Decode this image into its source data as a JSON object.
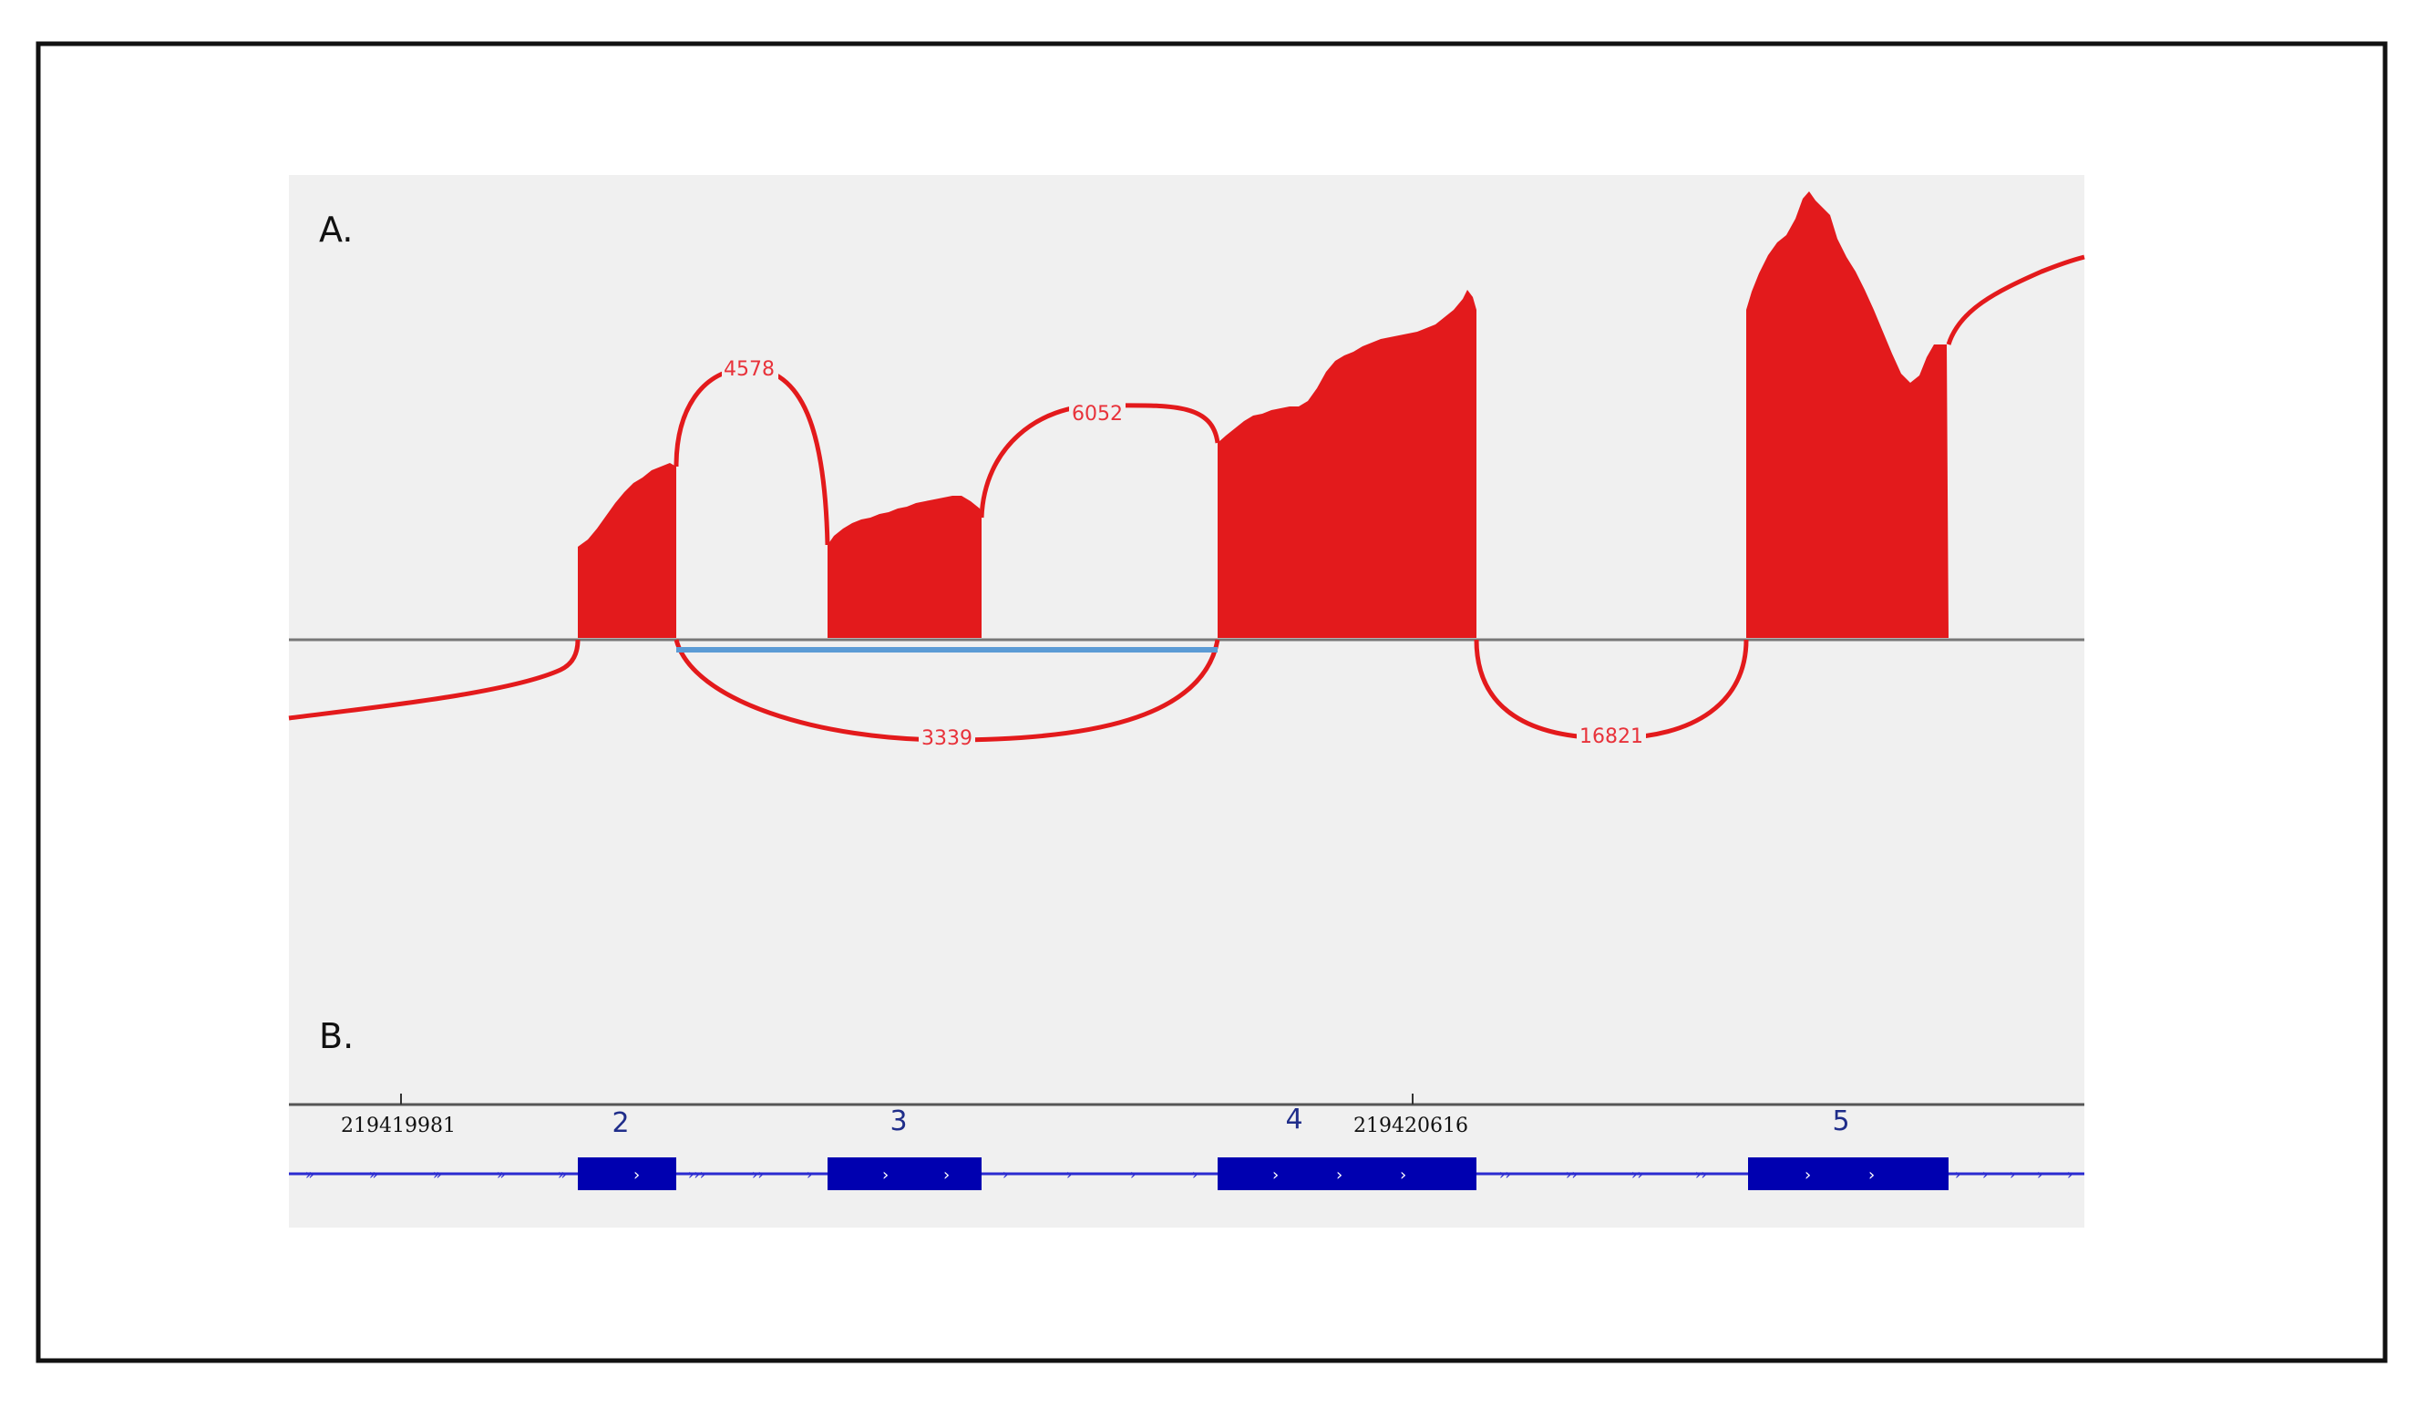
{
  "panels": {
    "a_label": "A.",
    "b_label": "B."
  },
  "junctions": [
    {
      "label": "4578"
    },
    {
      "label": "6052"
    },
    {
      "label": "3339"
    },
    {
      "label": "16821"
    }
  ],
  "coordinates": [
    {
      "label": "219419981"
    },
    {
      "label": "219420616"
    }
  ],
  "exons": [
    {
      "label": "2"
    },
    {
      "label": "3"
    },
    {
      "label": "4"
    },
    {
      "label": "5"
    }
  ],
  "colors": {
    "coverage": "#e31a1c",
    "junction_arc": "#e31a1c",
    "highlight_junction": "#5b9bd5",
    "exon": "#0000b0",
    "intron_line": "#2a2ad0",
    "track_background": "#f0f0f0",
    "axis": "#777777"
  }
}
